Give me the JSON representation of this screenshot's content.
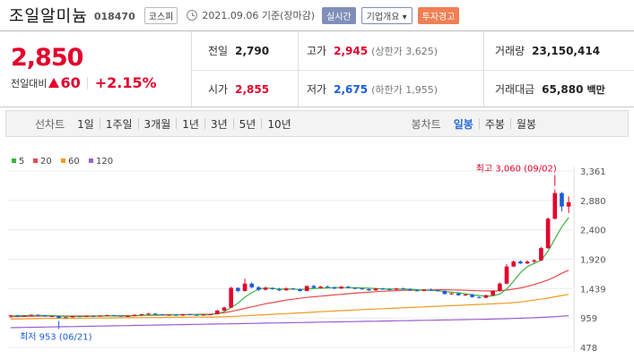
{
  "header": {
    "stock_name": "조일알미늄",
    "stock_code": "018470",
    "market": "코스피",
    "date_text": "2021.09.06 기준(장마감)",
    "live_label": "실시간",
    "company_label": "기업개요 ▾",
    "warning_label": "투자경고"
  },
  "price": {
    "current": "2,850",
    "change_label": "전일대비",
    "change_value": "60",
    "change_pct": "+2.15%"
  },
  "stats": {
    "prev_label": "전일",
    "prev_value": "2,790",
    "high_label": "고가",
    "high_value": "2,945",
    "high_sub": "(상한가 3,625)",
    "volume_label": "거래량",
    "volume_value": "23,150,414",
    "open_label": "시가",
    "open_value": "2,855",
    "low_label": "저가",
    "low_value": "2,675",
    "low_sub": "(하한가 1,955)",
    "amount_label": "거래대금",
    "amount_value": "65,880",
    "amount_unit": "백만"
  },
  "tabs": {
    "line_chart_label": "선차트",
    "periods": [
      "1일",
      "1주일",
      "3개월",
      "1년",
      "3년",
      "5년",
      "10년"
    ],
    "candle_label": "봉차트",
    "candle_periods": [
      "일봉",
      "주봉",
      "월봉"
    ],
    "selected_candle": "일봉"
  },
  "chart_data": {
    "type": "candlestick",
    "y_ticks": [
      "3,361",
      "2,880",
      "2,400",
      "1,920",
      "1,439",
      "959",
      "478"
    ],
    "ylim": [
      478,
      3361
    ],
    "legend": [
      {
        "name": "5",
        "color": "#3cb43c"
      },
      {
        "name": "20",
        "color": "#e84a4a"
      },
      {
        "name": "60",
        "color": "#f39a1e"
      },
      {
        "name": "120",
        "color": "#9a5fd0"
      }
    ],
    "max_annotation": "최고 3,060 (09/02)",
    "min_annotation": "최저 953 (06/21)",
    "up_color": "#e4002b",
    "down_color": "#1a5dd8",
    "candles": [
      [
        990,
        1000,
        960,
        1005
      ],
      [
        1000,
        985,
        975,
        1010
      ],
      [
        985,
        995,
        978,
        1000
      ],
      [
        995,
        1010,
        990,
        1015
      ],
      [
        1010,
        1000,
        995,
        1020
      ],
      [
        1000,
        985,
        980,
        1005
      ],
      [
        985,
        990,
        975,
        995
      ],
      [
        990,
        960,
        953,
        995
      ],
      [
        960,
        970,
        955,
        975
      ],
      [
        970,
        990,
        965,
        995
      ],
      [
        990,
        980,
        975,
        995
      ],
      [
        980,
        990,
        975,
        995
      ],
      [
        990,
        985,
        980,
        995
      ],
      [
        985,
        995,
        980,
        1000
      ],
      [
        995,
        1005,
        990,
        1010
      ],
      [
        1005,
        995,
        990,
        1010
      ],
      [
        995,
        985,
        980,
        1000
      ],
      [
        985,
        990,
        980,
        995
      ],
      [
        990,
        1010,
        985,
        1015
      ],
      [
        1010,
        1020,
        1005,
        1025
      ],
      [
        1020,
        1030,
        1010,
        1040
      ],
      [
        1030,
        1015,
        1010,
        1040
      ],
      [
        1015,
        1005,
        1000,
        1020
      ],
      [
        1005,
        1010,
        1000,
        1015
      ],
      [
        1010,
        1000,
        995,
        1015
      ],
      [
        1000,
        1020,
        995,
        1025
      ],
      [
        1020,
        1010,
        1005,
        1030
      ],
      [
        1010,
        1000,
        995,
        1015
      ],
      [
        1000,
        1015,
        995,
        1020
      ],
      [
        1015,
        1020,
        1010,
        1025
      ],
      [
        1020,
        1080,
        1015,
        1090
      ],
      [
        1080,
        1130,
        1070,
        1140
      ],
      [
        1130,
        1450,
        1120,
        1470
      ],
      [
        1450,
        1400,
        1380,
        1460
      ],
      [
        1400,
        1520,
        1390,
        1600
      ],
      [
        1520,
        1460,
        1440,
        1540
      ],
      [
        1460,
        1420,
        1400,
        1480
      ],
      [
        1420,
        1450,
        1410,
        1470
      ],
      [
        1450,
        1430,
        1420,
        1460
      ],
      [
        1430,
        1410,
        1400,
        1450
      ],
      [
        1410,
        1440,
        1405,
        1460
      ],
      [
        1440,
        1430,
        1420,
        1450
      ],
      [
        1430,
        1400,
        1390,
        1440
      ],
      [
        1400,
        1480,
        1395,
        1490
      ],
      [
        1480,
        1450,
        1440,
        1500
      ],
      [
        1450,
        1470,
        1440,
        1480
      ],
      [
        1470,
        1460,
        1450,
        1490
      ],
      [
        1460,
        1440,
        1430,
        1470
      ],
      [
        1440,
        1470,
        1435,
        1480
      ],
      [
        1470,
        1450,
        1440,
        1480
      ],
      [
        1450,
        1440,
        1430,
        1460
      ],
      [
        1440,
        1430,
        1420,
        1450
      ],
      [
        1430,
        1410,
        1400,
        1440
      ],
      [
        1410,
        1440,
        1405,
        1450
      ],
      [
        1440,
        1430,
        1420,
        1450
      ],
      [
        1430,
        1420,
        1410,
        1440
      ],
      [
        1420,
        1440,
        1415,
        1450
      ],
      [
        1440,
        1430,
        1420,
        1455
      ],
      [
        1430,
        1410,
        1400,
        1440
      ],
      [
        1410,
        1400,
        1395,
        1430
      ],
      [
        1400,
        1420,
        1395,
        1430
      ],
      [
        1420,
        1410,
        1400,
        1440
      ],
      [
        1410,
        1400,
        1390,
        1420
      ],
      [
        1400,
        1350,
        1340,
        1410
      ],
      [
        1350,
        1360,
        1340,
        1370
      ],
      [
        1360,
        1330,
        1320,
        1370
      ],
      [
        1330,
        1340,
        1320,
        1350
      ],
      [
        1340,
        1300,
        1290,
        1350
      ],
      [
        1300,
        1290,
        1280,
        1310
      ],
      [
        1290,
        1330,
        1280,
        1340
      ],
      [
        1330,
        1400,
        1320,
        1410
      ],
      [
        1400,
        1520,
        1390,
        1540
      ],
      [
        1520,
        1800,
        1510,
        1840
      ],
      [
        1800,
        1880,
        1790,
        1900
      ],
      [
        1880,
        1850,
        1840,
        1900
      ],
      [
        1850,
        1880,
        1840,
        1900
      ],
      [
        1880,
        1900,
        1860,
        1920
      ],
      [
        1900,
        2100,
        1890,
        2120
      ],
      [
        2100,
        2580,
        2090,
        2600
      ],
      [
        2580,
        3000,
        2570,
        3060
      ],
      [
        3000,
        2780,
        2700,
        3020
      ],
      [
        2780,
        2850,
        2675,
        2945
      ]
    ],
    "ma5": [
      990,
      995,
      998,
      1000,
      1000,
      1000,
      998,
      990,
      985,
      985,
      985,
      985,
      988,
      990,
      992,
      992,
      990,
      990,
      995,
      1000,
      1005,
      1010,
      1015,
      1015,
      1012,
      1012,
      1012,
      1010,
      1010,
      1012,
      1030,
      1060,
      1130,
      1200,
      1300,
      1370,
      1430,
      1450,
      1440,
      1430,
      1430,
      1430,
      1425,
      1430,
      1440,
      1445,
      1450,
      1455,
      1455,
      1455,
      1452,
      1450,
      1445,
      1440,
      1435,
      1430,
      1430,
      1430,
      1428,
      1420,
      1415,
      1410,
      1405,
      1390,
      1380,
      1370,
      1355,
      1340,
      1325,
      1315,
      1320,
      1350,
      1430,
      1560,
      1700,
      1800,
      1850,
      1900,
      2050,
      2250,
      2450,
      2600
    ],
    "ma20": [
      980,
      982,
      984,
      986,
      988,
      990,
      990,
      990,
      990,
      990,
      990,
      991,
      992,
      993,
      994,
      995,
      996,
      997,
      998,
      1000,
      1002,
      1004,
      1006,
      1008,
      1010,
      1012,
      1014,
      1016,
      1018,
      1020,
      1030,
      1045,
      1065,
      1090,
      1115,
      1140,
      1165,
      1190,
      1210,
      1230,
      1250,
      1265,
      1280,
      1295,
      1305,
      1315,
      1325,
      1335,
      1345,
      1355,
      1365,
      1372,
      1380,
      1388,
      1395,
      1400,
      1405,
      1410,
      1412,
      1414,
      1416,
      1418,
      1420,
      1420,
      1418,
      1415,
      1412,
      1408,
      1404,
      1400,
      1400,
      1405,
      1415,
      1430,
      1450,
      1475,
      1505,
      1540,
      1580,
      1630,
      1690,
      1740
    ],
    "ma60": [
      940,
      942,
      944,
      946,
      948,
      950,
      951,
      952,
      953,
      954,
      955,
      956,
      957,
      958,
      959,
      960,
      961,
      962,
      963,
      964,
      965,
      966,
      967,
      968,
      969,
      970,
      971,
      972,
      973,
      974,
      976,
      979,
      983,
      988,
      994,
      1000,
      1006,
      1012,
      1018,
      1024,
      1030,
      1036,
      1042,
      1048,
      1054,
      1060,
      1066,
      1072,
      1078,
      1084,
      1090,
      1095,
      1100,
      1105,
      1110,
      1115,
      1120,
      1125,
      1130,
      1135,
      1140,
      1145,
      1150,
      1155,
      1160,
      1165,
      1170,
      1175,
      1180,
      1185,
      1190,
      1195,
      1200,
      1210,
      1220,
      1235,
      1250,
      1265,
      1285,
      1305,
      1325,
      1345
    ],
    "ma120": [
      800,
      802,
      804,
      806,
      808,
      810,
      812,
      814,
      816,
      818,
      820,
      822,
      824,
      826,
      828,
      830,
      832,
      834,
      836,
      838,
      840,
      842,
      844,
      846,
      848,
      850,
      852,
      854,
      856,
      858,
      860,
      862,
      864,
      866,
      868,
      870,
      872,
      874,
      876,
      878,
      880,
      882,
      884,
      886,
      888,
      890,
      892,
      894,
      896,
      898,
      900,
      902,
      904,
      906,
      908,
      910,
      912,
      914,
      916,
      918,
      920,
      922,
      924,
      926,
      928,
      930,
      932,
      934,
      936,
      938,
      940,
      943,
      946,
      950,
      954,
      958,
      963,
      968,
      974,
      980,
      988,
      996
    ]
  }
}
